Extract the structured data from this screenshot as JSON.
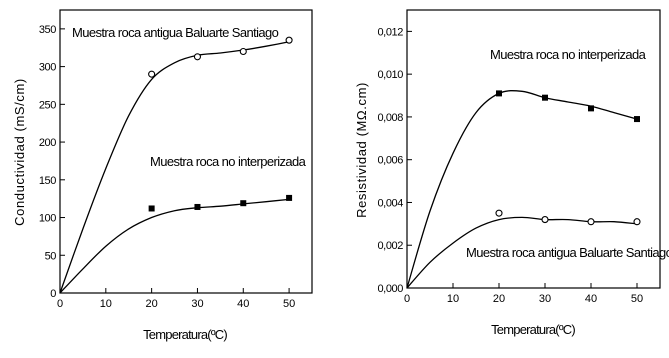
{
  "chart_data": [
    {
      "type": "scatter",
      "xlabel": "Temperatura(ºC)",
      "ylabel": "Conductividad (mS/cm)",
      "xlim": [
        0,
        55
      ],
      "ylim": [
        0,
        375
      ],
      "xticks": [
        0,
        10,
        20,
        30,
        40,
        50
      ],
      "yticks": [
        0,
        50,
        100,
        150,
        200,
        250,
        300,
        350
      ],
      "xtick_labels": [
        "0",
        "10",
        "20",
        "30",
        "40",
        "50"
      ],
      "ytick_labels": [
        "0",
        "50",
        "100",
        "150",
        "200",
        "250",
        "300",
        "350"
      ],
      "grid": false,
      "series": [
        {
          "name": "Muestra roca antigua Baluarte Santiago",
          "marker": "open-circle",
          "x": [
            20,
            30,
            40,
            50
          ],
          "y": [
            290,
            313,
            320,
            335
          ],
          "fit_x": [
            0,
            5,
            10,
            15,
            20,
            25,
            30,
            35,
            40,
            45,
            50
          ],
          "fit_y": [
            0,
            85,
            165,
            235,
            283,
            305,
            315,
            318,
            322,
            327,
            333
          ]
        },
        {
          "name": "Muestra roca no interperizada",
          "marker": "filled-square",
          "x": [
            20,
            30,
            40,
            50
          ],
          "y": [
            112,
            114,
            119,
            126
          ],
          "fit_x": [
            0,
            5,
            10,
            15,
            20,
            25,
            30,
            35,
            40,
            45,
            50
          ],
          "fit_y": [
            0,
            32,
            62,
            85,
            100,
            109,
            113,
            115,
            118,
            121,
            124
          ]
        }
      ]
    },
    {
      "type": "scatter",
      "xlabel": "Temperatura(ºC)",
      "ylabel": "Resistividad (MΩ.cm)",
      "xlim": [
        0,
        55
      ],
      "ylim": [
        0,
        0.013
      ],
      "xticks": [
        0,
        10,
        20,
        30,
        40,
        50
      ],
      "yticks": [
        0,
        0.002,
        0.004,
        0.006,
        0.008,
        0.01,
        0.012
      ],
      "xtick_labels": [
        "0",
        "10",
        "20",
        "30",
        "40",
        "50"
      ],
      "ytick_labels": [
        "0,000",
        "0,002",
        "0,004",
        "0,006",
        "0,008",
        "0,010",
        "0,012"
      ],
      "grid": false,
      "series": [
        {
          "name": "Muestra roca no interperizada",
          "marker": "filled-square",
          "x": [
            20,
            30,
            40,
            50
          ],
          "y": [
            0.0091,
            0.0089,
            0.0084,
            0.0079
          ],
          "fit_x": [
            0,
            5,
            10,
            15,
            20,
            25,
            30,
            35,
            40,
            45,
            50
          ],
          "fit_y": [
            0,
            0.0036,
            0.0063,
            0.0082,
            0.0091,
            0.0092,
            0.0089,
            0.0087,
            0.0085,
            0.0082,
            0.0079
          ]
        },
        {
          "name": "Muestra roca antigua Baluarte Santiago",
          "marker": "open-circle",
          "x": [
            20,
            30,
            40,
            50
          ],
          "y": [
            0.0035,
            0.0032,
            0.0031,
            0.0031
          ],
          "fit_x": [
            0,
            5,
            10,
            15,
            20,
            25,
            30,
            35,
            40,
            45,
            50
          ],
          "fit_y": [
            0,
            0.0012,
            0.0021,
            0.0028,
            0.0032,
            0.0033,
            0.0032,
            0.0032,
            0.0031,
            0.0031,
            0.003
          ]
        }
      ]
    }
  ]
}
